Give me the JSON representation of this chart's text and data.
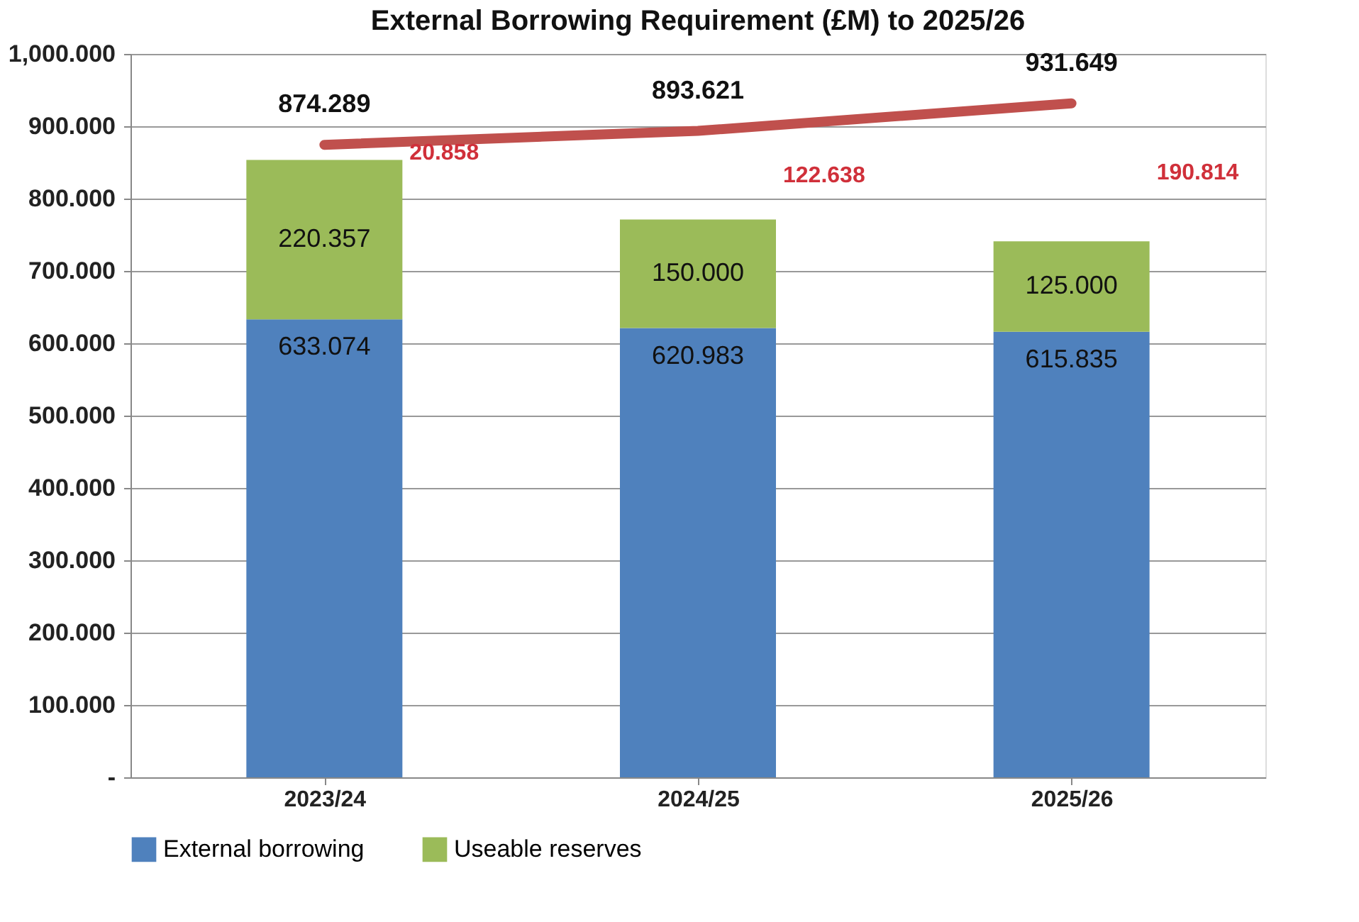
{
  "chart_data": {
    "type": "bar",
    "title": "External Borrowing Requirement (£M) to 2025/26",
    "categories": [
      "2023/24",
      "2024/25",
      "2025/26"
    ],
    "stacked": true,
    "series": [
      {
        "name": "External borrowing",
        "color": "#4f81bd",
        "values": [
          633.074,
          620.983,
          615.835
        ],
        "value_labels": [
          "633.074",
          "620.983",
          "615.835"
        ]
      },
      {
        "name": "Useable reserves",
        "color": "#9bbb59",
        "values": [
          220.357,
          150.0,
          125.0
        ],
        "value_labels": [
          "220.357",
          "150.000",
          "125.000"
        ]
      },
      {
        "type": "line",
        "color": "#c0504d",
        "values": [
          874.289,
          893.621,
          931.649
        ],
        "value_labels": [
          "874.289",
          "893.621",
          "931.649"
        ]
      }
    ],
    "ylim": [
      0,
      1000
    ],
    "yticks": [
      {
        "value": 0,
        "label": "-"
      },
      {
        "value": 100,
        "label": "100.000"
      },
      {
        "value": 200,
        "label": "200.000"
      },
      {
        "value": 300,
        "label": "300.000"
      },
      {
        "value": 400,
        "label": "400.000"
      },
      {
        "value": 500,
        "label": "500.000"
      },
      {
        "value": 600,
        "label": "600.000"
      },
      {
        "value": 700,
        "label": "700.000"
      },
      {
        "value": 800,
        "label": "800.000"
      },
      {
        "value": 900,
        "label": "900.000"
      },
      {
        "value": 1000,
        "label": "1,000.000"
      }
    ],
    "grid": "y",
    "legend": "bottom",
    "annotations": [
      "20.858",
      "122.638",
      "190.814"
    ]
  }
}
